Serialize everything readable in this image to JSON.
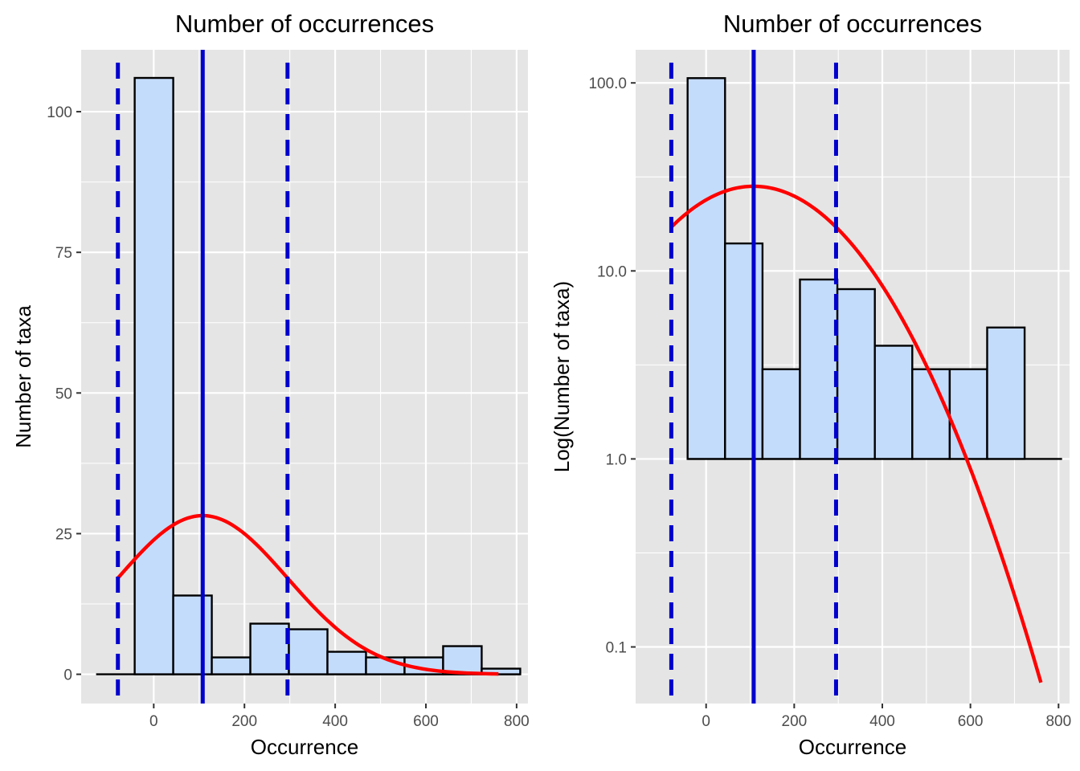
{
  "chart_data": [
    {
      "type": "bar",
      "panel": "left",
      "title": "Number of occurrences",
      "xlabel": "Occurrence",
      "ylabel": "Number of taxa",
      "y_scale": "linear",
      "xlim": [
        -160,
        825
      ],
      "ylim": [
        -5.2,
        111
      ],
      "x_ticks": [
        0,
        200,
        400,
        600,
        800
      ],
      "x_tick_labels": [
        "0",
        "200",
        "400",
        "600",
        "800"
      ],
      "y_ticks": [
        0,
        25,
        50,
        75,
        100
      ],
      "y_tick_labels": [
        "0",
        "25",
        "50",
        "75",
        "100"
      ],
      "grid": true,
      "bin_width": 85,
      "bin_starts": [
        -127,
        -42,
        43,
        128,
        213,
        298,
        383,
        468,
        553,
        638,
        723
      ],
      "values": [
        0,
        106,
        14,
        3,
        9,
        8,
        4,
        3,
        3,
        5,
        1
      ],
      "mean": 108,
      "mean_minus_sd": -79,
      "mean_plus_sd": 295,
      "normal_curve": {
        "x_start": -79,
        "x_end": 760,
        "peak": 28.2,
        "mean": 108,
        "sd": 187
      }
    },
    {
      "type": "bar",
      "panel": "right",
      "title": "Number of occurrences",
      "xlabel": "Occurrence",
      "ylabel": "Log(Number of taxa)",
      "y_scale": "log10",
      "xlim": [
        -160,
        825
      ],
      "ylim": [
        0.05,
        150
      ],
      "x_ticks": [
        0,
        200,
        400,
        600,
        800
      ],
      "x_tick_labels": [
        "0",
        "200",
        "400",
        "600",
        "800"
      ],
      "y_ticks": [
        0.1,
        1,
        10,
        100
      ],
      "y_tick_labels": [
        "0.1",
        "1.0",
        "10.0",
        "100.0"
      ],
      "grid": true,
      "bin_width": 85,
      "bar_base": 1,
      "bin_starts": [
        -42,
        43,
        128,
        213,
        298,
        383,
        468,
        553,
        638
      ],
      "values": [
        106,
        14,
        3,
        9,
        8,
        4,
        3,
        3,
        5
      ],
      "baseline_range": [
        -42,
        808
      ],
      "mean": 108,
      "mean_minus_sd": -79,
      "mean_plus_sd": 295,
      "normal_curve": {
        "x_start": -79,
        "x_end": 760,
        "peak": 28.2,
        "mean": 108,
        "sd": 187
      }
    }
  ]
}
